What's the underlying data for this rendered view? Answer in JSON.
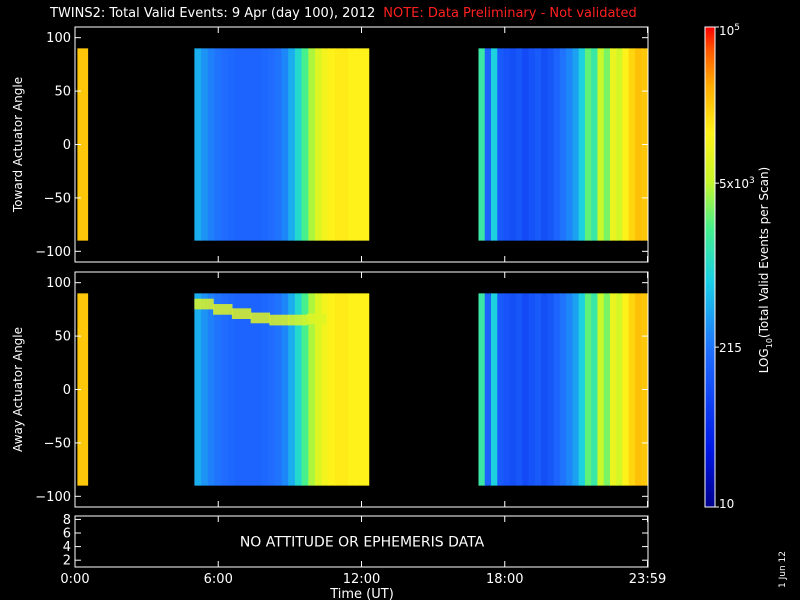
{
  "header": {
    "title": "TWINS2: Total Valid Events:  9 Apr (day 100), 2012",
    "note": "NOTE: Data Preliminary - Not validated",
    "note_color": "#ff2020"
  },
  "footer": {
    "datestamp": "1 Jun 12"
  },
  "chart_data": [
    {
      "type": "heatmap",
      "ylabel": "Toward Actuator Angle",
      "ylim": [
        -110,
        110
      ],
      "yticks": [
        100,
        50,
        0,
        -50,
        -100
      ],
      "xlim": [
        0,
        24
      ],
      "valid_y_range": [
        -90,
        90
      ],
      "blocks": [
        {
          "x": [
            0.1,
            0.55
          ],
          "level": 0.84
        },
        {
          "x": [
            5.0,
            12.3
          ],
          "profile": [
            0.42,
            0.38,
            0.35,
            0.33,
            0.32,
            0.31,
            0.3,
            0.3,
            0.3,
            0.3,
            0.31,
            0.32,
            0.33,
            0.36,
            0.42,
            0.5,
            0.58,
            0.66,
            0.72,
            0.76,
            0.78,
            0.79,
            0.79,
            0.78,
            0.78,
            0.78
          ]
        },
        {
          "x": [
            16.9,
            23.98
          ],
          "profile": [
            0.55,
            0.3,
            0.48,
            0.28,
            0.26,
            0.25,
            0.27,
            0.24,
            0.26,
            0.28,
            0.25,
            0.27,
            0.3,
            0.33,
            0.36,
            0.4,
            0.48,
            0.6,
            0.55,
            0.68,
            0.62,
            0.74,
            0.7,
            0.78,
            0.82,
            0.85,
            0.84
          ]
        }
      ]
    },
    {
      "type": "heatmap",
      "ylabel": "Away Actuator Angle",
      "ylim": [
        -110,
        110
      ],
      "yticks": [
        100,
        50,
        0,
        -50,
        -100
      ],
      "xlim": [
        0,
        24
      ],
      "valid_y_range": [
        -90,
        90
      ],
      "blocks": [
        {
          "x": [
            0.1,
            0.55
          ],
          "level": 0.84
        },
        {
          "x": [
            5.0,
            12.3
          ],
          "profile": [
            0.42,
            0.38,
            0.35,
            0.33,
            0.32,
            0.31,
            0.3,
            0.3,
            0.3,
            0.3,
            0.31,
            0.32,
            0.33,
            0.36,
            0.42,
            0.5,
            0.58,
            0.66,
            0.72,
            0.76,
            0.78,
            0.79,
            0.79,
            0.78,
            0.78,
            0.78
          ]
        },
        {
          "x": [
            16.9,
            23.98
          ],
          "profile": [
            0.55,
            0.3,
            0.48,
            0.28,
            0.26,
            0.25,
            0.27,
            0.24,
            0.26,
            0.28,
            0.25,
            0.27,
            0.3,
            0.33,
            0.36,
            0.4,
            0.48,
            0.6,
            0.55,
            0.68,
            0.62,
            0.74,
            0.7,
            0.78,
            0.82,
            0.85,
            0.84
          ]
        }
      ],
      "band": {
        "x": [
          5.0,
          10.5
        ],
        "y_top": [
          85,
          80,
          76,
          72,
          70,
          70,
          71
        ],
        "width": 10,
        "level": 0.72
      }
    },
    {
      "type": "table",
      "ylim": [
        1,
        8.5
      ],
      "yticks": [
        8,
        6,
        4,
        2
      ],
      "message": "NO ATTITUDE OR EPHEMERIS DATA"
    }
  ],
  "xaxis": {
    "ticks": [
      {
        "t": 0.0,
        "label": "0:00"
      },
      {
        "t": 6.0,
        "label": "6:00"
      },
      {
        "t": 12.0,
        "label": "12:00"
      },
      {
        "t": 18.0,
        "label": "18:00"
      },
      {
        "t": 23.98,
        "label": "23:59"
      }
    ],
    "label": "Time (UT)"
  },
  "colorbar": {
    "label": "LOG10(Total Valid Events per Scan)",
    "range": [
      10,
      100000
    ],
    "ticks": [
      {
        "value": 10,
        "label": "10"
      },
      {
        "value": 215,
        "label": "215"
      },
      {
        "value": 5000,
        "label": "5x10^3"
      },
      {
        "value": 100000,
        "label": "10^5"
      }
    ]
  }
}
